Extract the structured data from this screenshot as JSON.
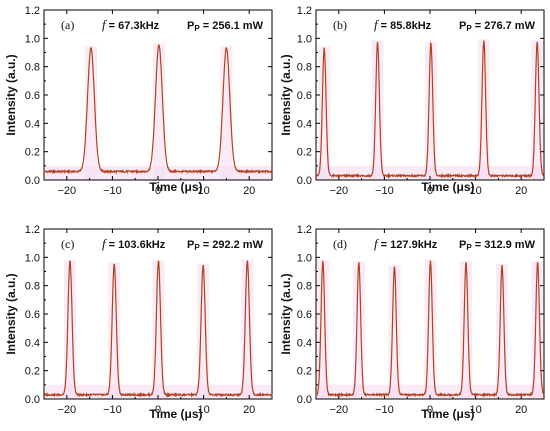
{
  "chart_data": [
    {
      "type": "line",
      "panel": "(a)",
      "freq_label": "67.3kHz",
      "power_label": "256.1 mW",
      "xlabel": "Time (μs)",
      "ylabel": "Intensity (a.u.)",
      "xlim": [
        -25,
        25
      ],
      "ylim": [
        0,
        1.2
      ],
      "xticks": [
        -20,
        -10,
        0,
        10,
        20
      ],
      "yticks": [
        0.0,
        0.2,
        0.4,
        0.6,
        0.8,
        1.0,
        1.2
      ],
      "baseline": 0.06,
      "pulse_width": 0.75,
      "pulses": [
        {
          "x": -14.7,
          "y": 0.93
        },
        {
          "x": 0.2,
          "y": 0.95
        },
        {
          "x": 15.0,
          "y": 0.93
        }
      ]
    },
    {
      "type": "line",
      "panel": "(b)",
      "freq_label": "85.8kHz",
      "power_label": "276.7 mW",
      "xlabel": "Time (μs)",
      "ylabel": "Intensity (a.u.)",
      "xlim": [
        -25,
        25
      ],
      "ylim": [
        0,
        1.2
      ],
      "xticks": [
        -20,
        -10,
        0,
        10,
        20
      ],
      "yticks": [
        0.0,
        0.2,
        0.4,
        0.6,
        0.8,
        1.0,
        1.2
      ],
      "baseline": 0.03,
      "pulse_width": 0.4,
      "pulses": [
        {
          "x": -23.2,
          "y": 0.93
        },
        {
          "x": -11.5,
          "y": 0.97
        },
        {
          "x": 0.2,
          "y": 0.96
        },
        {
          "x": 11.8,
          "y": 0.98
        },
        {
          "x": 23.5,
          "y": 0.97
        }
      ]
    },
    {
      "type": "line",
      "panel": "(c)",
      "freq_label": "103.6kHz",
      "power_label": "292.2 mW",
      "xlabel": "Time (μs)",
      "ylabel": "Intensity (a.u.)",
      "xlim": [
        -25,
        25
      ],
      "ylim": [
        0,
        1.2
      ],
      "xticks": [
        -20,
        -10,
        0,
        10,
        20
      ],
      "yticks": [
        0.0,
        0.2,
        0.4,
        0.6,
        0.8,
        1.0,
        1.2
      ],
      "baseline": 0.03,
      "pulse_width": 0.45,
      "pulses": [
        {
          "x": -19.3,
          "y": 0.97
        },
        {
          "x": -9.6,
          "y": 0.95
        },
        {
          "x": 0.1,
          "y": 0.97
        },
        {
          "x": 9.9,
          "y": 0.94
        },
        {
          "x": 19.6,
          "y": 0.97
        }
      ]
    },
    {
      "type": "line",
      "panel": "(d)",
      "freq_label": "127.9kHz",
      "power_label": "312.9 mW",
      "xlabel": "Time (μs)",
      "ylabel": "Intensity (a.u.)",
      "xlim": [
        -25,
        25
      ],
      "ylim": [
        0,
        1.2
      ],
      "xticks": [
        -20,
        -10,
        0,
        10,
        20
      ],
      "yticks": [
        0.0,
        0.2,
        0.4,
        0.6,
        0.8,
        1.0,
        1.2
      ],
      "baseline": 0.03,
      "pulse_width": 0.4,
      "pulses": [
        {
          "x": -23.5,
          "y": 0.97
        },
        {
          "x": -15.6,
          "y": 0.96
        },
        {
          "x": -7.8,
          "y": 0.93
        },
        {
          "x": 0.1,
          "y": 0.97
        },
        {
          "x": 7.9,
          "y": 0.96
        },
        {
          "x": 15.8,
          "y": 0.94
        },
        {
          "x": 23.6,
          "y": 0.96
        }
      ]
    }
  ],
  "colors": {
    "trace": "#b5401f",
    "axis": "#000000",
    "highlight": "#f6d8ee"
  }
}
